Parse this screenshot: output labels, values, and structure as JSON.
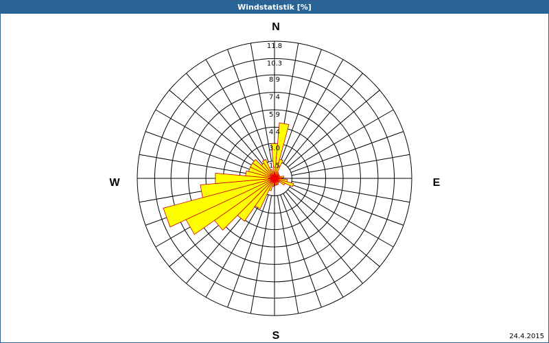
{
  "window": {
    "title": "Windstatistik [%]",
    "date": "24.4.2015"
  },
  "chart_data": {
    "type": "polar-bar",
    "title": "Windstatistik [%]",
    "unit": "%",
    "directions": [
      "N",
      "E",
      "S",
      "W"
    ],
    "rings": [
      "1.5",
      "3.0",
      "4.4",
      "5.9",
      "7.4",
      "8.9",
      "10.3",
      "11.8"
    ],
    "rmax": 11.8,
    "sectors": 36,
    "sector_step_deg": 10,
    "angles": [
      0,
      10,
      20,
      30,
      40,
      50,
      60,
      70,
      80,
      90,
      100,
      110,
      120,
      130,
      140,
      150,
      160,
      170,
      180,
      190,
      200,
      210,
      220,
      230,
      240,
      250,
      260,
      270,
      280,
      290,
      300,
      310,
      320,
      330,
      340,
      350
    ],
    "values": [
      3.0,
      4.8,
      1.7,
      0.6,
      0.5,
      0.5,
      0.4,
      0.5,
      0.8,
      0.6,
      1.1,
      1.7,
      1.0,
      0.5,
      0.4,
      0.6,
      0.6,
      0.6,
      0.5,
      0.7,
      1.1,
      2.9,
      4.5,
      6.3,
      8.4,
      9.9,
      6.4,
      5.1,
      2.5,
      2.3,
      2.3,
      2.3,
      1.6,
      1.8,
      0.8,
      0.6
    ],
    "colors": {
      "fill": "#ffff00",
      "outline": "#cc0000",
      "grid": "#000000",
      "accent": "#ff0000"
    }
  }
}
